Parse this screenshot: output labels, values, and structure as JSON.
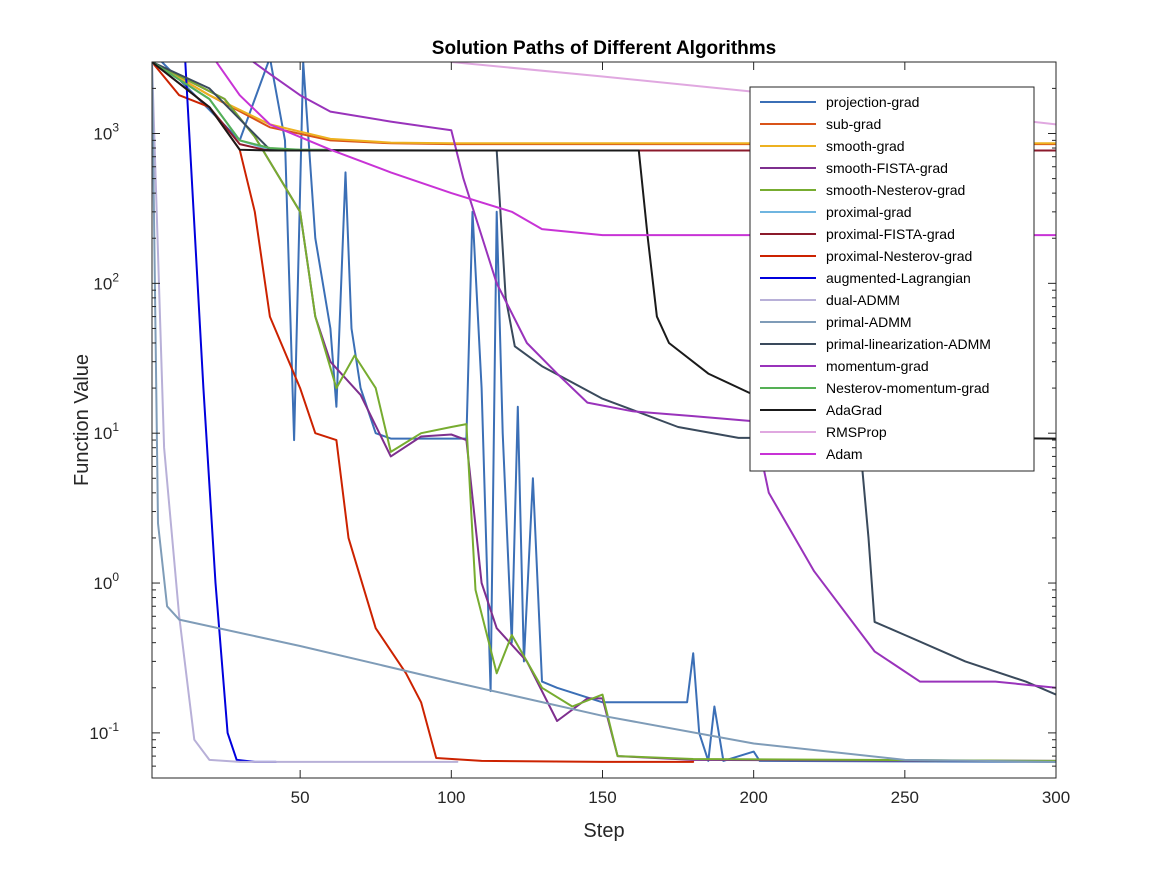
{
  "chart_data": {
    "type": "line",
    "title": "Solution Paths of Different Algorithms",
    "xlabel": "Step",
    "ylabel": "Function Value",
    "xlim": [
      1,
      300
    ],
    "ylim": [
      0.05,
      3000
    ],
    "yscale": "log",
    "grid": false,
    "legend_position": "top-right",
    "xticks": [
      {
        "value": 50,
        "label": "50"
      },
      {
        "value": 100,
        "label": "100"
      },
      {
        "value": 150,
        "label": "150"
      },
      {
        "value": 200,
        "label": "200"
      },
      {
        "value": 250,
        "label": "250"
      },
      {
        "value": 300,
        "label": "300"
      }
    ],
    "yticks": [
      {
        "value": 0.1,
        "base": "10",
        "exp": "-1"
      },
      {
        "value": 1,
        "base": "10",
        "exp": "0"
      },
      {
        "value": 10,
        "base": "10",
        "exp": "1"
      },
      {
        "value": 100,
        "base": "10",
        "exp": "2"
      },
      {
        "value": 1000,
        "base": "10",
        "exp": "3"
      }
    ],
    "series": [
      {
        "name": "projection-grad",
        "color": "#3b6fb6",
        "points": [
          [
            1,
            3500
          ],
          [
            30,
            900
          ],
          [
            40,
            3200
          ],
          [
            45,
            900
          ],
          [
            48,
            9
          ],
          [
            51,
            3000
          ],
          [
            55,
            200
          ],
          [
            60,
            50
          ],
          [
            62,
            15
          ],
          [
            65,
            550
          ],
          [
            67,
            50
          ],
          [
            70,
            20
          ],
          [
            75,
            10
          ],
          [
            80,
            9.2
          ],
          [
            90,
            9.2
          ],
          [
            100,
            9.2
          ],
          [
            105,
            9.2
          ],
          [
            107,
            300
          ],
          [
            110,
            20
          ],
          [
            113,
            0.19
          ],
          [
            115,
            300
          ],
          [
            117,
            10
          ],
          [
            120,
            0.4
          ],
          [
            122,
            15
          ],
          [
            124,
            0.3
          ],
          [
            127,
            5
          ],
          [
            130,
            0.22
          ],
          [
            135,
            0.2
          ],
          [
            150,
            0.16
          ],
          [
            178,
            0.16
          ],
          [
            180,
            0.34
          ],
          [
            182,
            0.1
          ],
          [
            185,
            0.065
          ],
          [
            187,
            0.15
          ],
          [
            190,
            0.065
          ],
          [
            200,
            0.075
          ],
          [
            202,
            0.065
          ],
          [
            300,
            0.064
          ]
        ]
      },
      {
        "name": "sub-grad",
        "color": "#d95319",
        "points": [
          [
            1,
            3000
          ],
          [
            20,
            1800
          ],
          [
            40,
            1100
          ],
          [
            60,
            900
          ],
          [
            80,
            860
          ],
          [
            100,
            850
          ],
          [
            150,
            850
          ],
          [
            200,
            850
          ],
          [
            250,
            850
          ],
          [
            300,
            850
          ]
        ]
      },
      {
        "name": "smooth-grad",
        "color": "#edb120",
        "points": [
          [
            1,
            3000
          ],
          [
            20,
            1800
          ],
          [
            40,
            1150
          ],
          [
            60,
            920
          ],
          [
            80,
            870
          ],
          [
            100,
            860
          ],
          [
            150,
            860
          ],
          [
            200,
            860
          ],
          [
            250,
            860
          ],
          [
            300,
            860
          ]
        ]
      },
      {
        "name": "smooth-FISTA-grad",
        "color": "#7e2f8e",
        "points": [
          [
            1,
            3000
          ],
          [
            25,
            1700
          ],
          [
            35,
            950
          ],
          [
            50,
            300
          ],
          [
            55,
            60
          ],
          [
            60,
            30
          ],
          [
            70,
            18
          ],
          [
            80,
            7
          ],
          [
            90,
            9.5
          ],
          [
            100,
            9.8
          ],
          [
            105,
            9
          ],
          [
            110,
            1
          ],
          [
            115,
            0.5
          ],
          [
            125,
            0.3
          ],
          [
            135,
            0.12
          ],
          [
            145,
            0.17
          ],
          [
            150,
            0.17
          ],
          [
            155,
            0.07
          ],
          [
            180,
            0.066
          ],
          [
            300,
            0.065
          ]
        ]
      },
      {
        "name": "smooth-Nesterov-grad",
        "color": "#77ac30",
        "points": [
          [
            1,
            3000
          ],
          [
            25,
            1700
          ],
          [
            35,
            950
          ],
          [
            50,
            300
          ],
          [
            55,
            60
          ],
          [
            62,
            20
          ],
          [
            68,
            33
          ],
          [
            75,
            20
          ],
          [
            80,
            7.5
          ],
          [
            90,
            10
          ],
          [
            100,
            11
          ],
          [
            105,
            11.5
          ],
          [
            108,
            0.9
          ],
          [
            115,
            0.25
          ],
          [
            120,
            0.45
          ],
          [
            130,
            0.2
          ],
          [
            140,
            0.15
          ],
          [
            150,
            0.18
          ],
          [
            155,
            0.07
          ],
          [
            180,
            0.067
          ],
          [
            300,
            0.065
          ]
        ]
      },
      {
        "name": "proximal-grad",
        "color": "#6fb5e0",
        "points": [
          [
            1,
            3000
          ],
          [
            20,
            1700
          ],
          [
            30,
            900
          ],
          [
            40,
            780
          ],
          [
            50,
            770
          ],
          [
            100,
            770
          ],
          [
            150,
            770
          ],
          [
            200,
            770
          ],
          [
            250,
            770
          ],
          [
            300,
            770
          ]
        ]
      },
      {
        "name": "proximal-FISTA-grad",
        "color": "#8b1a2b",
        "points": [
          [
            1,
            3000
          ],
          [
            20,
            1500
          ],
          [
            30,
            850
          ],
          [
            38,
            780
          ],
          [
            50,
            770
          ],
          [
            100,
            770
          ],
          [
            150,
            770
          ],
          [
            300,
            770
          ]
        ]
      },
      {
        "name": "proximal-Nesterov-grad",
        "color": "#cc2200",
        "points": [
          [
            1,
            3000
          ],
          [
            10,
            1800
          ],
          [
            20,
            1500
          ],
          [
            30,
            780
          ],
          [
            35,
            300
          ],
          [
            40,
            60
          ],
          [
            50,
            20
          ],
          [
            55,
            10
          ],
          [
            62,
            9
          ],
          [
            66,
            2
          ],
          [
            75,
            0.5
          ],
          [
            85,
            0.25
          ],
          [
            90,
            0.16
          ],
          [
            95,
            0.068
          ],
          [
            110,
            0.065
          ],
          [
            150,
            0.064
          ],
          [
            180,
            0.064
          ]
        ]
      },
      {
        "name": "augmented-Lagrangian",
        "color": "#0000dd",
        "points": [
          [
            12,
            3000
          ],
          [
            18,
            20
          ],
          [
            22,
            1
          ],
          [
            26,
            0.1
          ],
          [
            29,
            0.066
          ],
          [
            35,
            0.064
          ],
          [
            42,
            0.064
          ]
        ]
      },
      {
        "name": "dual-ADMM",
        "color": "#b8b0d8",
        "points": [
          [
            1,
            3000
          ],
          [
            5,
            8
          ],
          [
            10,
            0.6
          ],
          [
            15,
            0.09
          ],
          [
            20,
            0.066
          ],
          [
            30,
            0.064
          ],
          [
            102,
            0.064
          ]
        ]
      },
      {
        "name": "primal-ADMM",
        "color": "#7f9cb8",
        "points": [
          [
            1,
            3000
          ],
          [
            3,
            2.5
          ],
          [
            6,
            0.7
          ],
          [
            10,
            0.57
          ],
          [
            50,
            0.38
          ],
          [
            100,
            0.22
          ],
          [
            150,
            0.13
          ],
          [
            200,
            0.085
          ],
          [
            250,
            0.066
          ],
          [
            300,
            0.064
          ]
        ]
      },
      {
        "name": "primal-linearization-ADMM",
        "color": "#3a4a5c",
        "points": [
          [
            1,
            3000
          ],
          [
            20,
            2000
          ],
          [
            40,
            780
          ],
          [
            100,
            770
          ],
          [
            115,
            770
          ],
          [
            118,
            80
          ],
          [
            121,
            38
          ],
          [
            130,
            28
          ],
          [
            150,
            17
          ],
          [
            175,
            11
          ],
          [
            195,
            9.3
          ],
          [
            230,
            9.3
          ],
          [
            235,
            9.3
          ],
          [
            238,
            2
          ],
          [
            240,
            0.55
          ],
          [
            250,
            0.45
          ],
          [
            270,
            0.3
          ],
          [
            290,
            0.22
          ],
          [
            300,
            0.18
          ]
        ]
      },
      {
        "name": "momentum-grad",
        "color": "#9933bb",
        "points": [
          [
            30,
            3500
          ],
          [
            40,
            2500
          ],
          [
            50,
            1800
          ],
          [
            60,
            1400
          ],
          [
            80,
            1200
          ],
          [
            100,
            1050
          ],
          [
            104,
            500
          ],
          [
            115,
            100
          ],
          [
            125,
            40
          ],
          [
            135,
            25
          ],
          [
            145,
            16
          ],
          [
            160,
            14
          ],
          [
            180,
            13
          ],
          [
            200,
            12
          ],
          [
            205,
            4
          ],
          [
            220,
            1.2
          ],
          [
            240,
            0.35
          ],
          [
            255,
            0.22
          ],
          [
            280,
            0.22
          ],
          [
            300,
            0.2
          ]
        ]
      },
      {
        "name": "Nesterov-momentum-grad",
        "color": "#55b055",
        "points": [
          [
            1,
            3000
          ],
          [
            20,
            1700
          ],
          [
            30,
            900
          ],
          [
            40,
            800
          ],
          [
            50,
            780
          ],
          [
            60,
            780
          ]
        ]
      },
      {
        "name": "AdaGrad",
        "color": "#1a1a1a",
        "points": [
          [
            1,
            3000
          ],
          [
            20,
            1500
          ],
          [
            30,
            780
          ],
          [
            40,
            770
          ],
          [
            100,
            770
          ],
          [
            162,
            770
          ],
          [
            165,
            200
          ],
          [
            168,
            60
          ],
          [
            172,
            40
          ],
          [
            185,
            25
          ],
          [
            200,
            18
          ],
          [
            215,
            14
          ],
          [
            230,
            11
          ],
          [
            245,
            9.5
          ],
          [
            270,
            9.3
          ],
          [
            300,
            9.2
          ]
        ]
      },
      {
        "name": "RMSProp",
        "color": "#e0a8e0",
        "points": [
          [
            100,
            3000
          ],
          [
            150,
            2400
          ],
          [
            200,
            1900
          ],
          [
            250,
            1500
          ],
          [
            300,
            1150
          ]
        ]
      },
      {
        "name": "Adam",
        "color": "#c833d6",
        "points": [
          [
            20,
            3500
          ],
          [
            30,
            1800
          ],
          [
            40,
            1150
          ],
          [
            60,
            780
          ],
          [
            80,
            550
          ],
          [
            100,
            400
          ],
          [
            120,
            300
          ],
          [
            130,
            230
          ],
          [
            150,
            210
          ],
          [
            200,
            210
          ],
          [
            250,
            210
          ],
          [
            300,
            210
          ]
        ]
      }
    ]
  }
}
